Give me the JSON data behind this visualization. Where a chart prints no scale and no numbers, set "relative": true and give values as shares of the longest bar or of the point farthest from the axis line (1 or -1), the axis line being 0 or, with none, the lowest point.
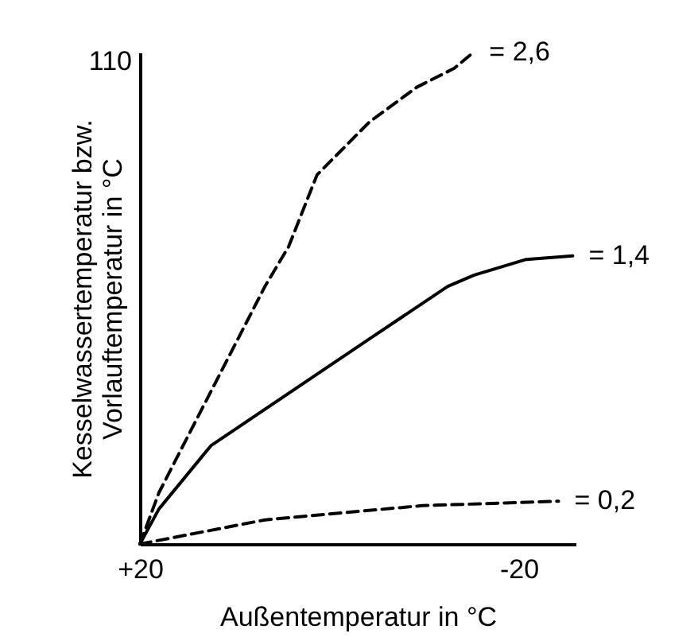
{
  "chart_data": {
    "type": "line",
    "relative": true,
    "xlabel": "Außentemperatur in °C",
    "ylabel": "Kesselwassertemperatur bzw.\nVorlauftemperatur in °C",
    "xlim": [
      20,
      -26
    ],
    "xticks": [
      {
        "value": 20,
        "label": "+20"
      },
      -20
    ],
    "annotations": [
      "110"
    ],
    "legend": false,
    "grid": false,
    "marker": "none",
    "series": [
      {
        "name": "= 2,6",
        "color": "#000000",
        "line_style": "dashed",
        "x": [
          20,
          18,
          16.3,
          6.8,
          4.3,
          1.3,
          -4.2,
          -9.2,
          -13.2,
          -15.2
        ],
        "values": [
          0,
          0.104,
          0.168,
          0.524,
          0.605,
          0.751,
          0.858,
          0.929,
          0.968,
          1.0
        ]
      },
      {
        "name": "= 1,4",
        "color": "#000000",
        "line_style": "solid",
        "x": [
          20,
          18,
          12.5,
          -4.2,
          -12.5,
          -15.3,
          -20.8,
          -25.7
        ],
        "values": [
          0,
          0.071,
          0.2,
          0.417,
          0.524,
          0.547,
          0.579,
          0.586
        ]
      },
      {
        "name": "= 0,2",
        "color": "#000000",
        "line_style": "dashed",
        "x": [
          20,
          6.8,
          -9.8,
          -24.2
        ],
        "values": [
          0,
          0.049,
          0.078,
          0.087
        ]
      }
    ]
  }
}
